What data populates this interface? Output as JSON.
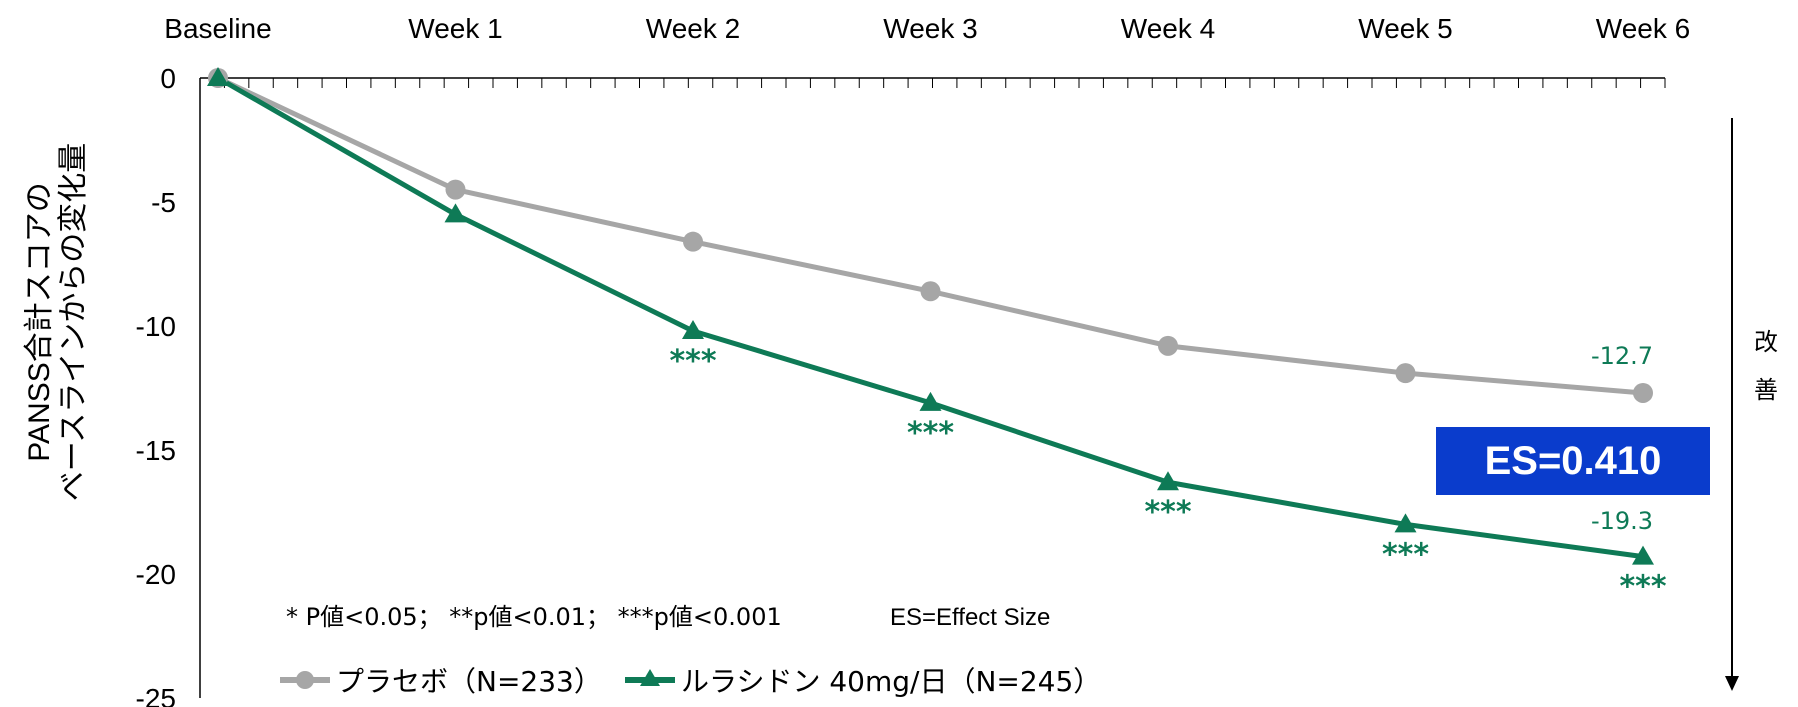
{
  "chart_data": {
    "type": "line",
    "categories": [
      "Baseline",
      "Week 1",
      "Week 2",
      "Week 3",
      "Week 4",
      "Week 5",
      "Week 6"
    ],
    "ylabel_lines": [
      "PANSS合計スコアの",
      "ベースラインからの変化量"
    ],
    "ylim": [
      -25,
      0
    ],
    "yticks": [
      "0",
      "-5",
      "-10",
      "-15",
      "-20",
      "-25"
    ],
    "series": [
      {
        "name": "プラセボ（N=233）",
        "marker": "circle",
        "color": "#a6a6a6",
        "values": [
          0,
          -4.5,
          -6.6,
          -8.6,
          -10.8,
          -11.9,
          -12.7
        ]
      },
      {
        "name": "ルラシドン 40mg/日（N=245）",
        "marker": "triangle",
        "color": "#0e7a56",
        "values": [
          0,
          -5.5,
          -10.2,
          -13.1,
          -16.3,
          -18.0,
          -19.3
        ],
        "significance": [
          "",
          "",
          "***",
          "***",
          "***",
          "***",
          "***"
        ]
      }
    ],
    "data_labels": {
      "placebo_end": "-12.7",
      "drug_end": "-19.3"
    },
    "effect_size_box": "ES=0.410",
    "footnote": "* P値<0.05； **p値<0.01； ***p値<0.001",
    "es_note": "ES=Effect Size",
    "improvement_label": "改善"
  },
  "colors": {
    "placebo": "#a6a6a6",
    "drug": "#0e7a56",
    "es_box": "#0a3ccc"
  }
}
